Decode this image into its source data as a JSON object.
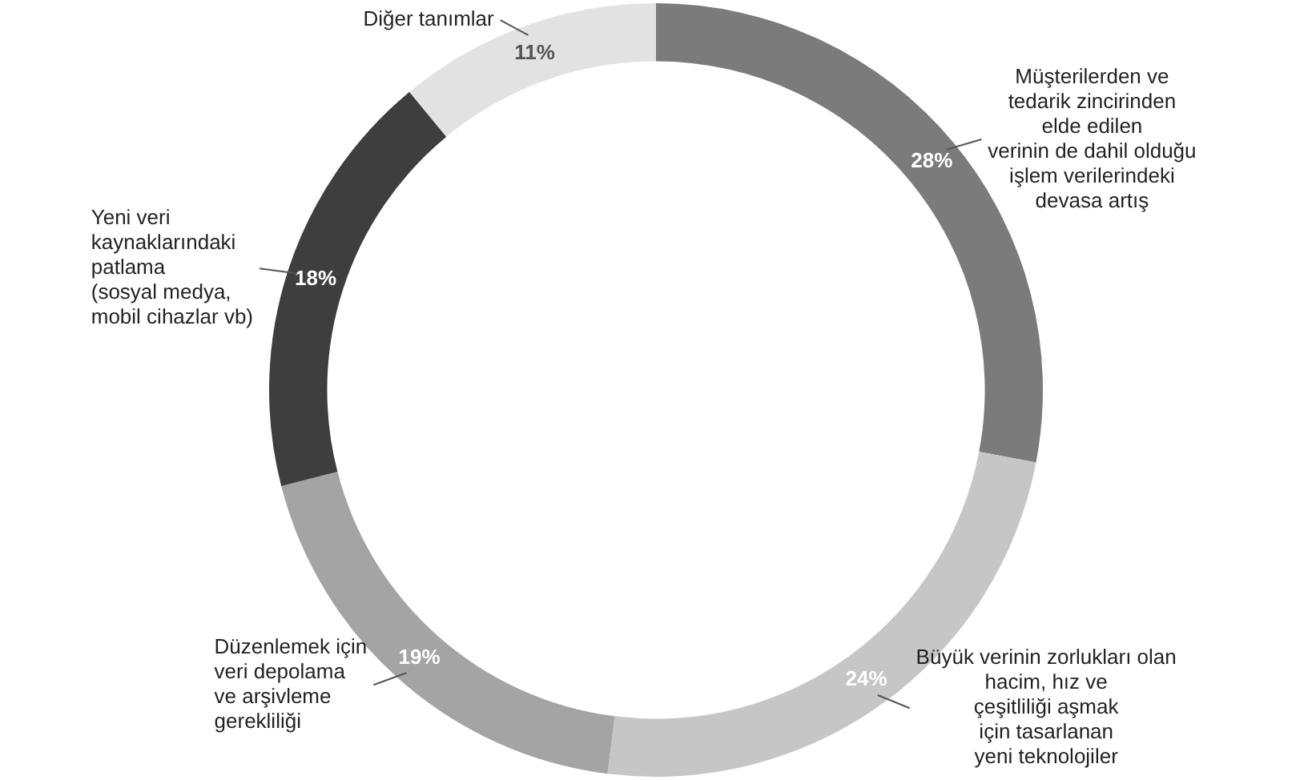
{
  "chart_data": {
    "type": "donut",
    "categories": [
      "Müşterilerden ve\ntedarik zincirinden\nelde edilen\nverinin de dahil olduğu\nişlem verilerindeki\ndevasa artış",
      "Büyük verinin zorlukları olan\nhacim, hız ve\nçeşitliliği aşmak\niçin tasarlanan\nyeni teknolojiler",
      "Düzenlemek için\nveri depolama\nve arşivleme\ngerekliliği",
      "Yeni veri\nkaynaklarındaki\npatlama\n(sosyal medya,\nmobil cihazlar vb)",
      "Diğer tanımlar"
    ],
    "values": [
      28,
      24,
      19,
      18,
      11
    ],
    "value_labels": [
      "28%",
      "24%",
      "19%",
      "18%",
      "11%"
    ],
    "colors": [
      "#7b7b7b",
      "#c6c6c6",
      "#a4a4a4",
      "#3e3e3e",
      "#e2e2e2"
    ],
    "legend": false
  }
}
